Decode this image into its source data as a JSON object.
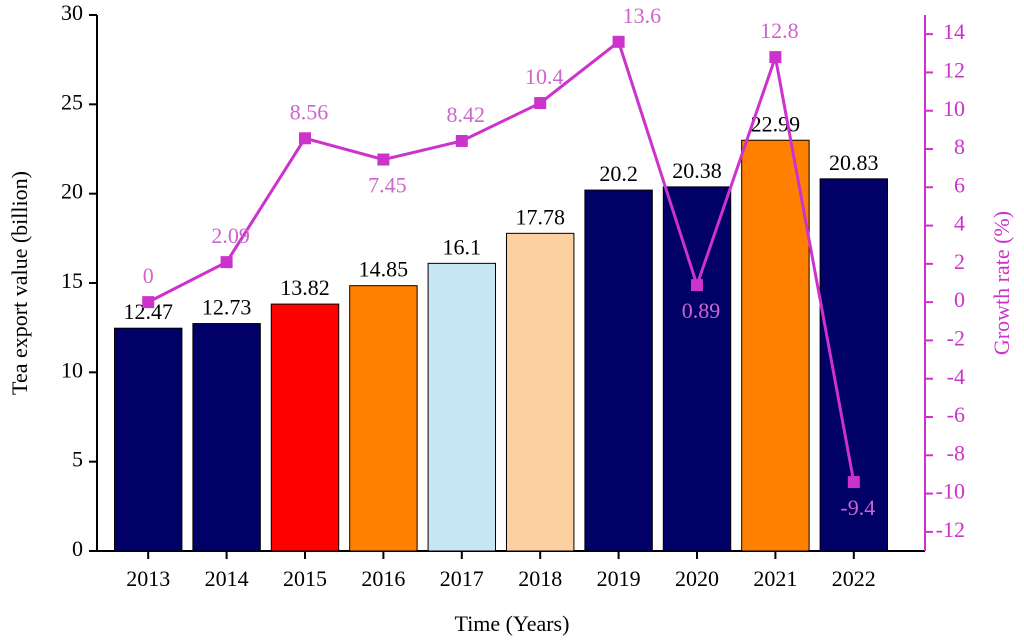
{
  "chart_data": {
    "type": "bar-line",
    "categories": [
      "2013",
      "2014",
      "2015",
      "2016",
      "2017",
      "2018",
      "2019",
      "2020",
      "2021",
      "2022"
    ],
    "x_label": "Time (Years)",
    "y_label": "Tea export value (billion)",
    "y2_label": "Growth rate (%)",
    "ylim": [
      0,
      30
    ],
    "yticks": [
      0,
      5,
      10,
      15,
      20,
      25,
      30
    ],
    "y2lim": [
      -13,
      15
    ],
    "y2ticks": [
      -12,
      -10,
      -8,
      -6,
      -4,
      -2,
      0,
      2,
      4,
      6,
      8,
      10,
      12,
      14
    ],
    "series": [
      {
        "type": "bar",
        "colors": [
          "#000066",
          "#000066",
          "#ff0000",
          "#ff8000",
          "#c6e6f4",
          "#fdd0a2",
          "#000066",
          "#000066",
          "#ff8000",
          "#000066"
        ],
        "values": [
          12.47,
          12.73,
          13.82,
          14.85,
          16.1,
          17.78,
          20.2,
          20.38,
          22.99,
          20.83
        ]
      },
      {
        "type": "line",
        "axis": "y2",
        "color": "#cc33cc",
        "values": [
          0,
          2.09,
          8.56,
          7.45,
          8.42,
          10.4,
          13.6,
          0.89,
          12.8,
          -9.4
        ]
      }
    ]
  }
}
